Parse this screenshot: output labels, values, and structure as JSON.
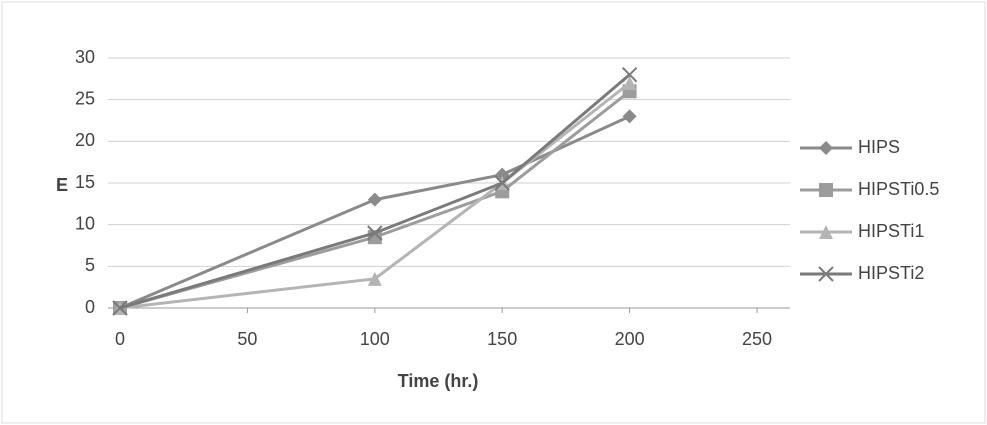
{
  "chart_data": {
    "type": "line",
    "x_label": "Time (hr.)",
    "y_label": "E",
    "xlim": [
      0,
      250
    ],
    "xticks": [
      0,
      50,
      100,
      150,
      200,
      250
    ],
    "ylim": [
      0,
      30
    ],
    "yticks": [
      0,
      5,
      10,
      15,
      20,
      25,
      30
    ],
    "grid": true,
    "legend": "right",
    "series": [
      {
        "name": "HIPS",
        "color": "#8a8a8a",
        "marker": "diamond",
        "x": [
          0,
          100,
          150,
          200
        ],
        "values": [
          0,
          13,
          16,
          23
        ]
      },
      {
        "name": "HIPSTi0.5",
        "color": "#9c9c9c",
        "marker": "square",
        "x": [
          0,
          100,
          150,
          200
        ],
        "values": [
          0,
          8.5,
          14,
          26
        ]
      },
      {
        "name": "HIPSTi1",
        "color": "#b4b4b4",
        "marker": "triangle",
        "x": [
          0,
          100,
          150,
          200
        ],
        "values": [
          0,
          3.5,
          15,
          27
        ]
      },
      {
        "name": "HIPSTi2",
        "color": "#7a7a7a",
        "marker": "cross",
        "x": [
          0,
          100,
          150,
          200
        ],
        "values": [
          0,
          9,
          15,
          28
        ]
      }
    ]
  }
}
